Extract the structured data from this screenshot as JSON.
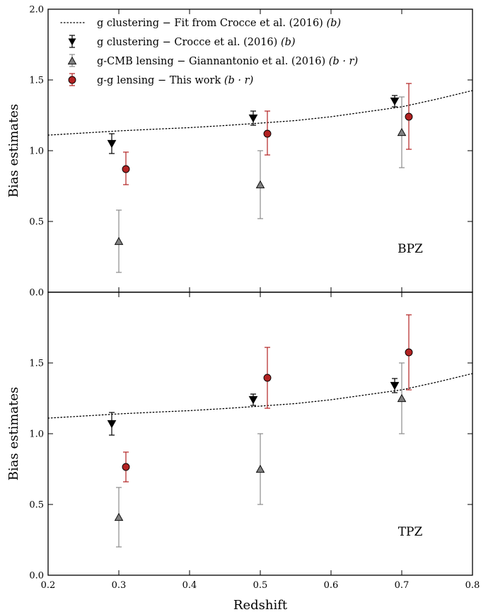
{
  "chart_data": [
    {
      "type": "scatter",
      "panel_label": "BPZ",
      "xlabel": "",
      "ylabel": "Bias estimates",
      "xlim": [
        0.2,
        0.8
      ],
      "ylim": [
        0.0,
        2.0
      ],
      "yticks": [
        "0.0",
        "0.5",
        "1.0",
        "1.5",
        "2.0"
      ],
      "fit": {
        "x": [
          0.2,
          0.25,
          0.3,
          0.35,
          0.4,
          0.45,
          0.5,
          0.55,
          0.6,
          0.65,
          0.7,
          0.75,
          0.8
        ],
        "y": [
          1.11,
          1.125,
          1.14,
          1.152,
          1.163,
          1.178,
          1.195,
          1.213,
          1.24,
          1.275,
          1.31,
          1.365,
          1.425
        ]
      },
      "series": [
        {
          "key": "crocce",
          "x": [
            0.29,
            0.49,
            0.69
          ],
          "y": [
            1.05,
            1.23,
            1.35
          ],
          "err": [
            0.07,
            0.05,
            0.04
          ]
        },
        {
          "key": "cmb",
          "x": [
            0.3,
            0.5,
            0.7
          ],
          "y": [
            0.36,
            0.76,
            1.13
          ],
          "err": [
            0.22,
            0.24,
            0.25
          ]
        },
        {
          "key": "gg",
          "x": [
            0.31,
            0.51,
            0.71
          ],
          "y": [
            0.87,
            1.12,
            1.24
          ],
          "err_low": [
            0.11,
            0.15,
            0.23
          ],
          "err_high": [
            0.12,
            0.16,
            0.235
          ]
        }
      ]
    },
    {
      "type": "scatter",
      "panel_label": "TPZ",
      "xlabel": "Redshift",
      "ylabel": "Bias estimates",
      "xlim": [
        0.2,
        0.8
      ],
      "ylim": [
        0.0,
        2.0
      ],
      "yticks": [
        "0.0",
        "0.5",
        "1.0",
        "1.5"
      ],
      "xticks": [
        "0.2",
        "0.3",
        "0.4",
        "0.5",
        "0.6",
        "0.7",
        "0.8"
      ],
      "fit": {
        "x": [
          0.2,
          0.25,
          0.3,
          0.35,
          0.4,
          0.45,
          0.5,
          0.55,
          0.6,
          0.65,
          0.7,
          0.75,
          0.8
        ],
        "y": [
          1.11,
          1.125,
          1.14,
          1.152,
          1.163,
          1.178,
          1.195,
          1.213,
          1.24,
          1.275,
          1.31,
          1.365,
          1.425
        ]
      },
      "series": [
        {
          "key": "crocce",
          "x": [
            0.29,
            0.49,
            0.69
          ],
          "y": [
            1.07,
            1.24,
            1.34
          ],
          "err": [
            0.08,
            0.04,
            0.05
          ]
        },
        {
          "key": "cmb",
          "x": [
            0.3,
            0.5,
            0.7
          ],
          "y": [
            0.41,
            0.75,
            1.25
          ],
          "err": [
            0.21,
            0.25,
            0.25
          ]
        },
        {
          "key": "gg",
          "x": [
            0.31,
            0.51,
            0.71
          ],
          "y": [
            0.765,
            1.395,
            1.575
          ],
          "err_low": [
            0.105,
            0.215,
            0.265
          ],
          "err_high": [
            0.105,
            0.215,
            0.265
          ]
        }
      ]
    }
  ],
  "legend": {
    "placement": "top-left",
    "items": [
      {
        "key": "fit",
        "label": "g clustering − Fit from Crocce et al. (2016) ",
        "math": "(b)"
      },
      {
        "key": "crocce",
        "label": "g clustering − Crocce et al. (2016) ",
        "math": "(b)"
      },
      {
        "key": "cmb",
        "label": "g-CMB lensing − Giannantonio et al. (2016) ",
        "math": "(b · r)"
      },
      {
        "key": "gg",
        "label": "g-g lensing − This work ",
        "math": "(b · r)"
      }
    ]
  },
  "colors": {
    "crocce": "#000000",
    "cmb": "#808080",
    "cmb_err": "#8c8c8c",
    "gg": "#b22222",
    "gg_err": "#b22222",
    "fit": "#000000"
  }
}
